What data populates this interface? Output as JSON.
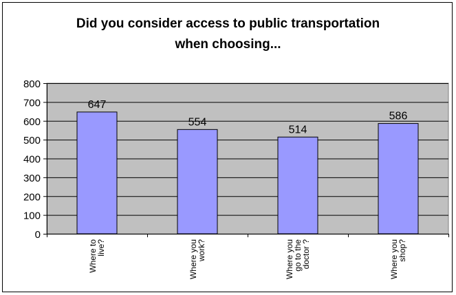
{
  "chart_data": {
    "type": "bar",
    "title_lines": [
      "Did you consider access to public transportation",
      "when choosing..."
    ],
    "categories": [
      [
        "Where to",
        "live?"
      ],
      [
        "Where you",
        "work?"
      ],
      [
        "Where you",
        "go to the",
        "doctor ?"
      ],
      [
        "Where you",
        "shop?"
      ]
    ],
    "values": [
      647,
      554,
      514,
      586
    ],
    "ylim": [
      0,
      800
    ],
    "yticks": [
      0,
      100,
      200,
      300,
      400,
      500,
      600,
      700,
      800
    ],
    "grid": true,
    "colors": {
      "plot_background": "#c0c0c0",
      "bar_fill": "#9999ff",
      "bar_stroke": "#000000",
      "gridline": "#000000"
    }
  }
}
